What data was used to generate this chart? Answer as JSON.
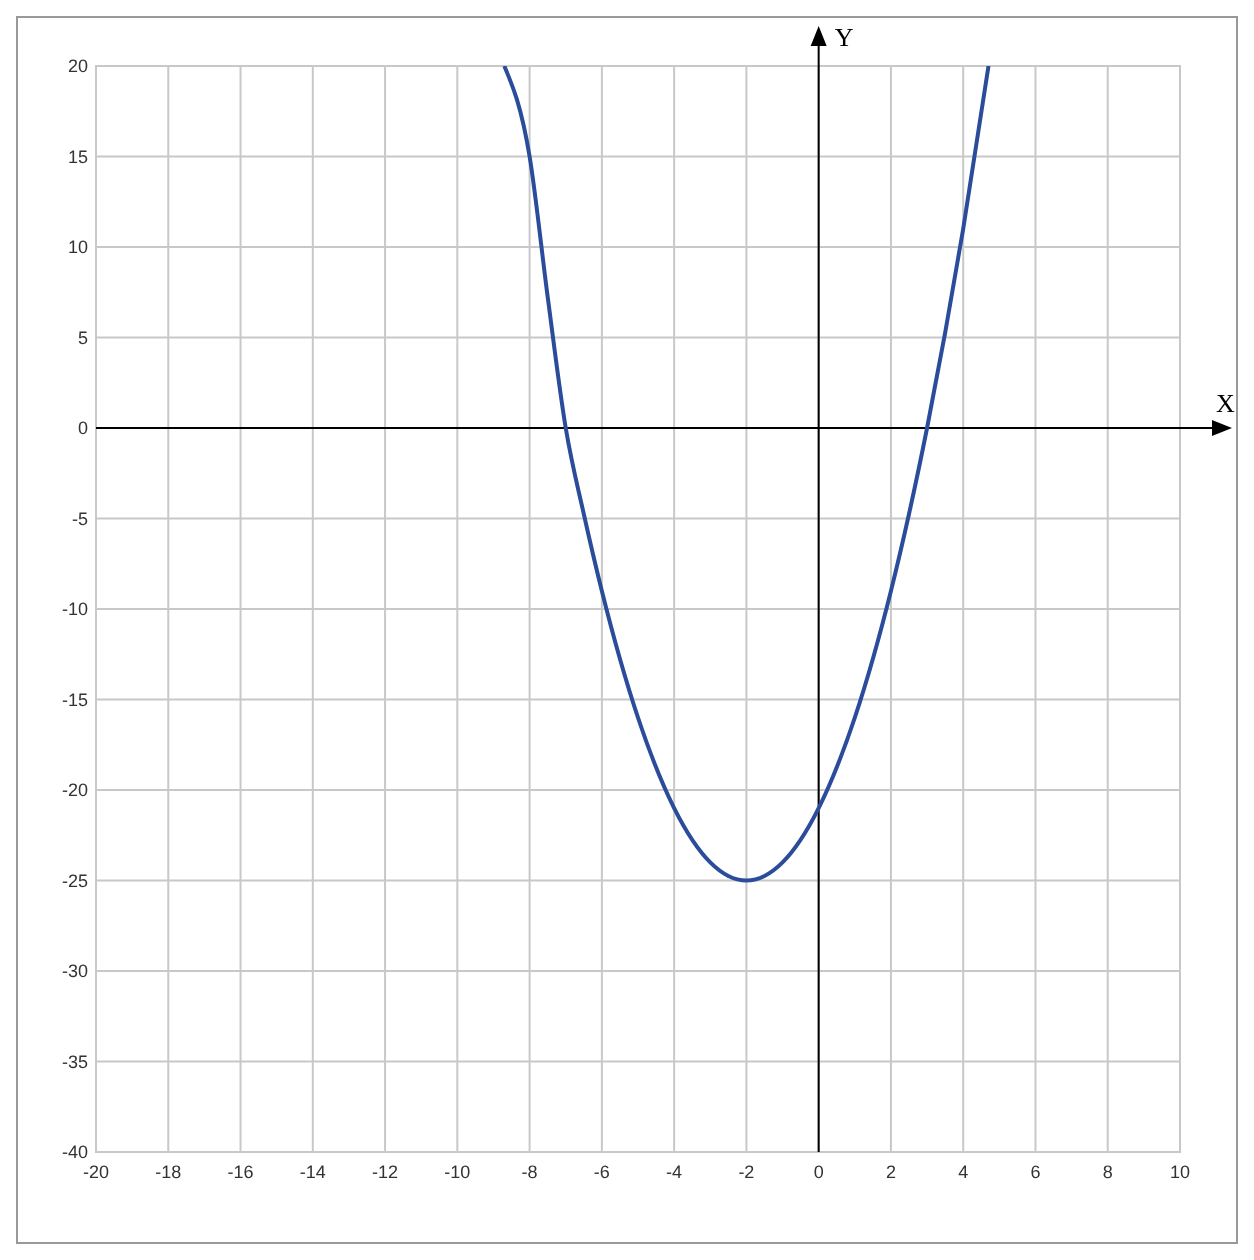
{
  "chart_data": {
    "type": "line",
    "xlabel": "X",
    "ylabel": "Y",
    "x": [
      -8.7,
      -8,
      -7.5,
      -7,
      -6.5,
      -6,
      -5,
      -4,
      -3,
      -2.5,
      -2,
      -1.5,
      -1,
      0,
      1,
      2,
      2.5,
      3,
      3.5,
      4,
      4.7
    ],
    "series": [
      {
        "color": "#2b4c9b",
        "values": [
          20,
          15,
          7.25,
          0,
          -4.75,
          -9,
          -16,
          -21,
          -24,
          -24.75,
          -25,
          -24.75,
          -24,
          -21,
          -16,
          -9,
          -4.75,
          0,
          5.25,
          11,
          20
        ]
      }
    ],
    "xlim": [
      -20,
      10
    ],
    "xticks": [
      -20,
      -18,
      -16,
      -14,
      -12,
      -10,
      -8,
      -6,
      -4,
      -2,
      0,
      2,
      4,
      6,
      8,
      10
    ],
    "ylim": [
      -40,
      20
    ],
    "yticks": [
      -40,
      -35,
      -30,
      -25,
      -20,
      -15,
      -10,
      -5,
      0,
      5,
      10,
      15,
      20
    ],
    "grid": true,
    "marker": "none",
    "line_style": "solid"
  }
}
